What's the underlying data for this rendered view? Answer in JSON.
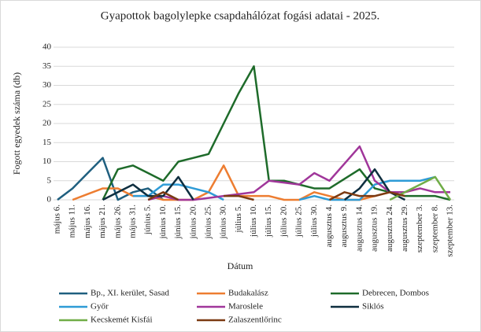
{
  "chart_data": {
    "type": "line",
    "title": "Gyapottok bagolylepke csapdahálózat fogási adatai - 2025.",
    "x_label": "Dátum",
    "y_label": "Fogott egyedek száma (db)",
    "categories": [
      "május 6.",
      "május 11.",
      "május 16.",
      "május 21.",
      "május 26.",
      "május 31.",
      "június 5.",
      "június 10.",
      "június 15.",
      "június 20.",
      "június 25.",
      "június 30.",
      "július 5.",
      "július 10.",
      "július 15.",
      "július 20.",
      "július 25.",
      "július 30.",
      "augusztus 4.",
      "augusztus 9.",
      "augusztus 14.",
      "augusztus 19.",
      "augusztus 24.",
      "augusztus 29.",
      "szeptember 3.",
      "szeptember 8.",
      "szeptember 13."
    ],
    "ylim": [
      0,
      40
    ],
    "yticks": [
      0,
      5,
      10,
      15,
      20,
      25,
      30,
      35,
      40
    ],
    "grid": true,
    "legend": "bottom",
    "series": [
      {
        "name": "Bp., XI. kerület, Sasad",
        "color": "#1f5f7f",
        "values": [
          0,
          3,
          7,
          11,
          0,
          2,
          3,
          0,
          null,
          null,
          null,
          null,
          null,
          null,
          null,
          null,
          null,
          null,
          null,
          null,
          null,
          null,
          null,
          null,
          null,
          null,
          null
        ]
      },
      {
        "name": "Budakalász",
        "color": "#ed7d31",
        "values": [
          null,
          0,
          1.5,
          3,
          3,
          1,
          1,
          0,
          0,
          0,
          2,
          9,
          1,
          1,
          1,
          0,
          0,
          2,
          1,
          0,
          0,
          1,
          2,
          2,
          3,
          null,
          null
        ]
      },
      {
        "name": "Debrecen, Dombos",
        "color": "#1e6b2a",
        "values": [
          null,
          null,
          null,
          0,
          8,
          9,
          7,
          5,
          10,
          11,
          12,
          20,
          28,
          35,
          5,
          5,
          4,
          3,
          3,
          5.5,
          8,
          3,
          2,
          1,
          1,
          1,
          0
        ]
      },
      {
        "name": "Győr",
        "color": "#2e9bd6",
        "values": [
          null,
          null,
          null,
          null,
          null,
          1,
          1,
          4,
          4,
          3,
          2,
          0,
          null,
          null,
          null,
          null,
          0,
          1,
          0,
          0,
          0,
          4,
          5,
          5,
          5,
          6,
          null
        ]
      },
      {
        "name": "Maroslele",
        "color": "#a0369a",
        "values": [
          null,
          null,
          null,
          null,
          null,
          null,
          0,
          1,
          0,
          0,
          0.5,
          1,
          1.5,
          2,
          5,
          4.5,
          4,
          7,
          5,
          9.5,
          14,
          5,
          2,
          2,
          3,
          2,
          2
        ]
      },
      {
        "name": "Siklós",
        "color": "#0e2e3f",
        "values": [
          null,
          null,
          null,
          0,
          2,
          4,
          1,
          1,
          6,
          0,
          null,
          null,
          null,
          null,
          null,
          null,
          null,
          null,
          null,
          0,
          3,
          8,
          2,
          0,
          null,
          null,
          null
        ]
      },
      {
        "name": "Kecskemét Kisfái",
        "color": "#70ad47",
        "values": [
          null,
          null,
          null,
          null,
          null,
          null,
          null,
          null,
          null,
          null,
          null,
          null,
          null,
          null,
          null,
          null,
          null,
          null,
          null,
          null,
          null,
          null,
          0,
          2,
          4,
          6,
          0
        ]
      },
      {
        "name": "Zalaszentlőrinc",
        "color": "#7b3a12",
        "values": [
          null,
          null,
          null,
          null,
          null,
          null,
          0,
          2,
          0,
          null,
          null,
          1,
          1,
          0,
          null,
          null,
          null,
          null,
          0,
          2,
          1,
          1,
          2,
          1,
          null,
          null,
          null
        ]
      }
    ]
  }
}
